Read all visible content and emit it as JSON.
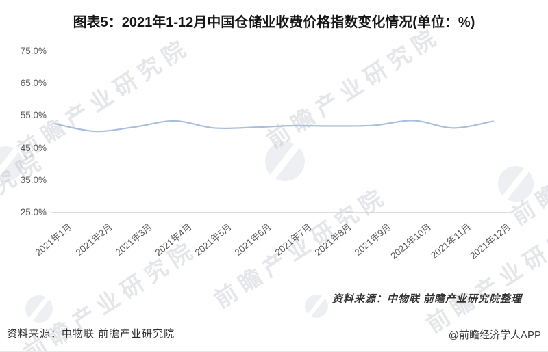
{
  "title": "图表5：2021年1-12月中国仓储业收费价格指数变化情况(单位：%)",
  "chart_data": {
    "type": "line",
    "title": "2021年1-12月中国仓储业收费价格指数变化情况",
    "unit": "%",
    "categories": [
      "2021年1月",
      "2021年2月",
      "2021年3月",
      "2021年4月",
      "2021年5月",
      "2021年6月",
      "2021年7月",
      "2021年8月",
      "2021年9月",
      "2021年10月",
      "2021年11月",
      "2021年12月"
    ],
    "series": [
      {
        "name": "仓储业收费价格指数",
        "values": [
          52.5,
          50.2,
          51.5,
          53.4,
          51.2,
          51.4,
          51.9,
          51.8,
          52.0,
          53.5,
          51.2,
          53.3
        ]
      }
    ],
    "ylim": [
      25,
      75
    ],
    "y_tick_labels": [
      "75.0%",
      "65.0%",
      "55.0%",
      "45.0%",
      "35.0%",
      "25.0%"
    ],
    "y_tick_values": [
      75,
      65,
      55,
      45,
      35,
      25
    ],
    "grid": false,
    "legend_position": "none",
    "line_color": "#a9bed8",
    "axis_color": "#c8c8c8"
  },
  "chart_note": "资料来源：中物联 前瞻产业研究院整理",
  "footer": {
    "source": "资料来源：中物联 前瞻产业研究院",
    "credit": "@前瞻经济学人APP"
  },
  "watermark": {
    "text": "前瞻产业研究院"
  }
}
